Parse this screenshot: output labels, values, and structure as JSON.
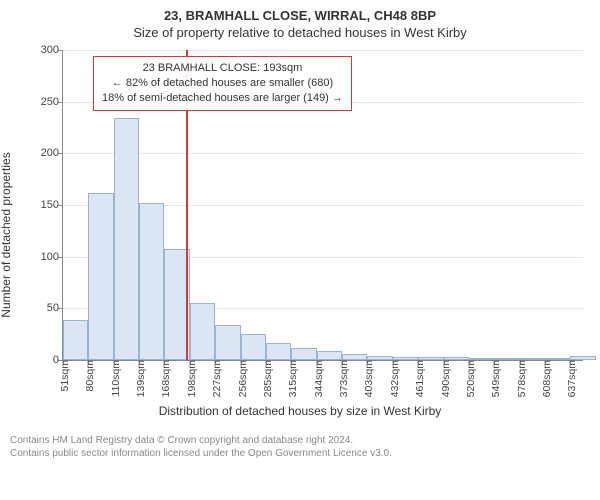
{
  "header": {
    "line1": "23, BRAMHALL CLOSE, WIRRAL, CH48 8BP",
    "line2": "Size of property relative to detached houses in West Kirby"
  },
  "chart": {
    "type": "histogram",
    "ylabel": "Number of detached properties",
    "xlabel": "Distribution of detached houses by size in West Kirby",
    "ylim": [
      0,
      300
    ],
    "ytick_step": 50,
    "yticks": [
      0,
      50,
      100,
      150,
      200,
      250,
      300
    ],
    "x_start": 51,
    "x_end": 652,
    "x_step": 29.32,
    "xticks": [
      "51sqm",
      "80sqm",
      "110sqm",
      "139sqm",
      "168sqm",
      "198sqm",
      "227sqm",
      "256sqm",
      "285sqm",
      "315sqm",
      "344sqm",
      "373sqm",
      "403sqm",
      "432sqm",
      "461sqm",
      "490sqm",
      "520sqm",
      "549sqm",
      "578sqm",
      "608sqm",
      "637sqm"
    ],
    "bars": [
      39,
      162,
      234,
      152,
      107,
      55,
      34,
      25,
      16,
      12,
      9,
      6,
      4,
      3,
      3,
      3,
      2,
      1,
      1,
      1,
      4
    ],
    "bar_fill": "#dbe5f4",
    "bar_border": "#9cb3d6",
    "grid_color": "#e5e5e5",
    "axis_color": "#888888",
    "background_color": "#ffffff",
    "vline": {
      "x": 193,
      "color": "#d23a3a"
    },
    "annotation": {
      "line1": "23 BRAMHALL CLOSE: 193sqm",
      "line2": "← 82% of detached houses are smaller (680)",
      "line3": "18% of semi-detached houses are larger (149) →",
      "border_color": "#d23a3a"
    }
  },
  "footer": {
    "line1": "Contains HM Land Registry data © Crown copyright and database right 2024.",
    "line2": "Contains public sector information licensed under the Open Government Licence v3.0."
  }
}
